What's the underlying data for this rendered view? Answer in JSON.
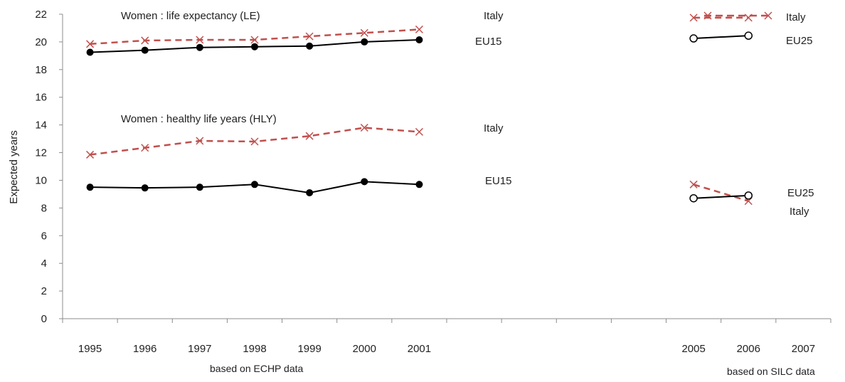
{
  "chart_data": {
    "type": "line",
    "ylabel": "Expected years",
    "ylim": [
      0,
      22
    ],
    "yticks": [
      0,
      2,
      4,
      6,
      8,
      10,
      12,
      14,
      16,
      18,
      20,
      22
    ],
    "x_ticks": [
      "1995",
      "1996",
      "1997",
      "1998",
      "1999",
      "2000",
      "2001",
      "",
      "",
      "",
      "",
      "2005",
      "2006",
      "2007"
    ],
    "grid": false,
    "series": [
      {
        "name": "Italy",
        "group": "Women : life expectancy (LE)",
        "style": "dashed-x",
        "color": "#c0504d",
        "x": [
          "1995",
          "1996",
          "1997",
          "1998",
          "1999",
          "2000",
          "2001"
        ],
        "values": [
          19.85,
          20.1,
          20.15,
          20.15,
          20.4,
          20.65,
          20.9
        ]
      },
      {
        "name": "EU15",
        "group": "Women : life expectancy (LE)",
        "style": "solid-dot",
        "color": "#000000",
        "x": [
          "1995",
          "1996",
          "1997",
          "1998",
          "1999",
          "2000",
          "2001"
        ],
        "values": [
          19.25,
          19.4,
          19.6,
          19.65,
          19.7,
          20.0,
          20.15
        ]
      },
      {
        "name": "Italy",
        "group": "Women : life expectancy (LE)",
        "style": "dashed-x",
        "color": "#c0504d",
        "x": [
          "2005",
          "2006"
        ],
        "values": [
          21.75,
          21.75
        ]
      },
      {
        "name": "EU25",
        "group": "Women : life expectancy (LE)",
        "style": "solid-circle",
        "color": "#000000",
        "x": [
          "2005",
          "2006"
        ],
        "values": [
          20.25,
          20.45
        ]
      },
      {
        "name": "Italy",
        "group": "Women : healthy life years (HLY)",
        "style": "dashed-x",
        "color": "#c0504d",
        "x": [
          "1995",
          "1996",
          "1997",
          "1998",
          "1999",
          "2000",
          "2001"
        ],
        "values": [
          11.85,
          12.35,
          12.85,
          12.8,
          13.2,
          13.8,
          13.5
        ]
      },
      {
        "name": "EU15",
        "group": "Women : healthy life years (HLY)",
        "style": "solid-dot",
        "color": "#000000",
        "x": [
          "1995",
          "1996",
          "1997",
          "1998",
          "1999",
          "2000",
          "2001"
        ],
        "values": [
          9.5,
          9.45,
          9.5,
          9.7,
          9.1,
          9.9,
          9.7
        ]
      },
      {
        "name": "Italy",
        "group": "Women : healthy life years (HLY)",
        "style": "dashed-x",
        "color": "#c0504d",
        "x": [
          "2005",
          "2006"
        ],
        "values": [
          9.7,
          8.5
        ]
      },
      {
        "name": "EU25",
        "group": "Women : healthy life years (HLY)",
        "style": "solid-circle",
        "color": "#000000",
        "x": [
          "2005",
          "2006"
        ],
        "values": [
          8.7,
          8.9
        ]
      }
    ],
    "annotations": {
      "le_title": "Women : life expectancy (LE)",
      "hly_title": "Women : healthy life years (HLY)",
      "le_italy_label": "Italy",
      "le_eu15_label": "EU15",
      "hly_italy_label": "Italy",
      "hly_eu15_label": "EU15",
      "legend_italy": "Italy",
      "legend_eu25": "EU25",
      "hly_eu25_label": "EU25",
      "hly_italy_right_label": "Italy",
      "source_echp": "based on ECHP data",
      "source_silc": "based on SILC data"
    }
  }
}
